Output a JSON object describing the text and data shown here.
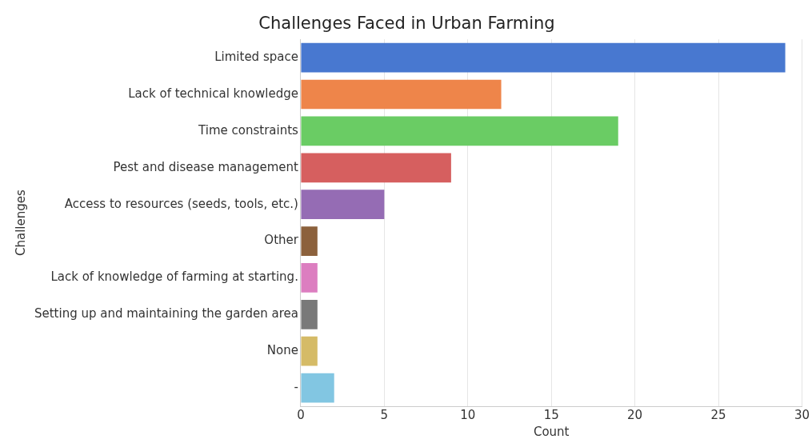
{
  "chart_data": {
    "type": "bar",
    "orientation": "horizontal",
    "title": "Challenges Faced in Urban Farming",
    "xlabel": "Count",
    "ylabel": "Challenges",
    "categories": [
      "Limited space",
      "Lack of technical knowledge",
      "Time constraints",
      "Pest and disease management",
      "Access to resources (seeds, tools, etc.)",
      "Other",
      "Lack of knowledge of farming at starting.",
      "Setting up and maintaining the garden area",
      "None",
      "-"
    ],
    "values": [
      29,
      12,
      19,
      9,
      5,
      1,
      1,
      1,
      1,
      2
    ],
    "colors": [
      "#4878d0",
      "#ee854a",
      "#6acc64",
      "#d65f5f",
      "#956cb4",
      "#8c613c",
      "#dc7ec0",
      "#797979",
      "#d5bb67",
      "#82c6e2"
    ],
    "xlim": [
      0,
      30
    ],
    "xticks": [
      0,
      5,
      10,
      15,
      20,
      25,
      30
    ],
    "grid": "x",
    "legend": false
  }
}
